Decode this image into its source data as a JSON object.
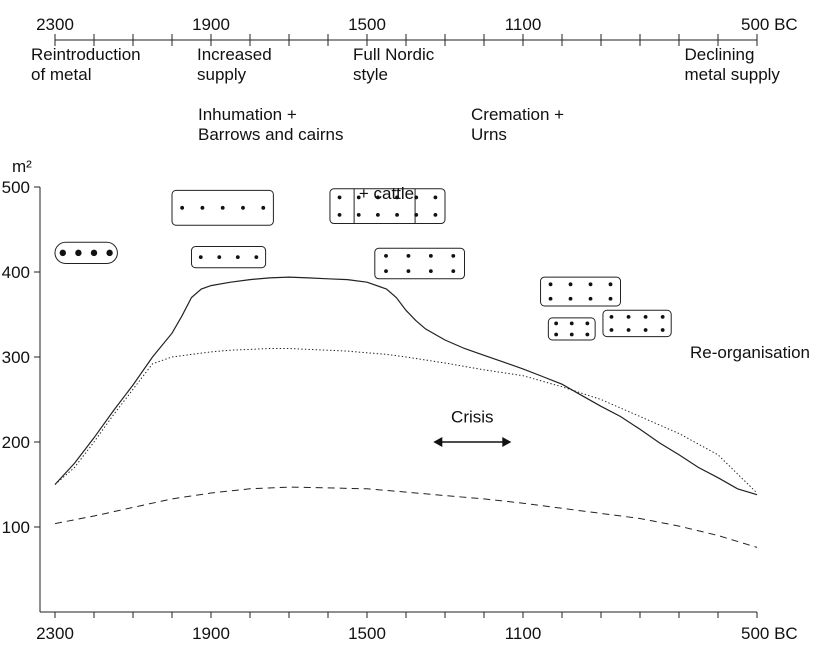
{
  "chart_data": {
    "type": "line",
    "title": "",
    "xlabel": "",
    "ylabel": "m²",
    "x_unit": "BC",
    "x_axis_labels": [
      "2300",
      "1900",
      "1500",
      "1100",
      "500 BC"
    ],
    "xlim": [
      2300,
      500
    ],
    "y_ticks": [
      100,
      200,
      300,
      400,
      500
    ],
    "ylim": [
      0,
      500
    ],
    "grid": false,
    "legend": "none",
    "top_axis": {
      "labels": [
        "2300",
        "1900",
        "1500",
        "1100",
        "500 BC"
      ],
      "minor_ticks_every": 100
    },
    "period_labels": [
      {
        "at": 2300,
        "text": [
          "Reintroduction",
          "of metal"
        ]
      },
      {
        "at": 1900,
        "text": [
          "Increased",
          "supply"
        ]
      },
      {
        "at": 1500,
        "text": [
          "Full Nordic",
          "style"
        ]
      },
      {
        "at": 650,
        "text": [
          "Declining",
          "metal supply"
        ]
      }
    ],
    "burial_labels": [
      {
        "at": 1800,
        "text": [
          "Inhumation +",
          "Barrows and cairns"
        ]
      },
      {
        "at": 1100,
        "text": [
          "Cremation +",
          "Urns"
        ]
      }
    ],
    "annotations": [
      {
        "text": "+ cattle",
        "x": 1450,
        "y": 488
      },
      {
        "text": "Crisis",
        "x": 1230,
        "y": 210,
        "kind": "double-arrow",
        "from": 1330,
        "to": 1130
      },
      {
        "text": "Re-organisation",
        "x": 650,
        "y": 300
      }
    ],
    "house_icons": [
      {
        "x": 2300,
        "x2": 2140,
        "y": 435,
        "y2": 410,
        "rows": 1,
        "cols": 4,
        "shape": "pill",
        "dot": "big"
      },
      {
        "x": 2000,
        "x2": 1740,
        "y": 496,
        "y2": 455,
        "rows": 1,
        "cols": 5,
        "shape": "rect"
      },
      {
        "x": 1950,
        "x2": 1760,
        "y": 430,
        "y2": 405,
        "rows": 1,
        "cols": 4,
        "shape": "rect"
      },
      {
        "x": 1595,
        "x2": 1300,
        "y": 498,
        "y2": 457,
        "rows": 2,
        "cols": 6,
        "shape": "rect",
        "dividers": 2
      },
      {
        "x": 1480,
        "x2": 1250,
        "y": 428,
        "y2": 392,
        "rows": 2,
        "cols": 4,
        "shape": "rect"
      },
      {
        "x": 1055,
        "x2": 850,
        "y": 394,
        "y2": 360,
        "rows": 2,
        "cols": 4,
        "shape": "rect"
      },
      {
        "x": 1035,
        "x2": 915,
        "y": 346,
        "y2": 320,
        "rows": 2,
        "cols": 3,
        "shape": "rect"
      },
      {
        "x": 895,
        "x2": 720,
        "y": 355,
        "y2": 324,
        "rows": 2,
        "cols": 4,
        "shape": "rect"
      }
    ],
    "series": [
      {
        "style": "solid",
        "x": [
          2300,
          2250,
          2200,
          2150,
          2100,
          2050,
          2000,
          1975,
          1950,
          1925,
          1900,
          1850,
          1800,
          1750,
          1700,
          1650,
          1600,
          1550,
          1500,
          1450,
          1425,
          1400,
          1375,
          1350,
          1300,
          1250,
          1200,
          1150,
          1100,
          1050,
          1000,
          950,
          900,
          850,
          800,
          750,
          700,
          650,
          600,
          550,
          500
        ],
        "y": [
          150,
          175,
          205,
          237,
          267,
          300,
          328,
          348,
          370,
          380,
          384,
          388,
          391,
          393,
          394,
          393,
          392,
          391,
          388,
          380,
          370,
          355,
          343,
          333,
          320,
          310,
          302,
          294,
          286,
          277,
          268,
          255,
          242,
          230,
          215,
          199,
          185,
          170,
          158,
          145,
          138
        ]
      },
      {
        "style": "dotted",
        "x": [
          2300,
          2250,
          2200,
          2150,
          2100,
          2050,
          2000,
          1950,
          1900,
          1850,
          1800,
          1750,
          1700,
          1650,
          1600,
          1550,
          1500,
          1450,
          1400,
          1300,
          1200,
          1100,
          1000,
          900,
          800,
          700,
          600,
          500
        ],
        "y": [
          150,
          170,
          200,
          232,
          262,
          292,
          300,
          303,
          306,
          308,
          309,
          310,
          310,
          309,
          308,
          307,
          305,
          303,
          300,
          293,
          285,
          278,
          265,
          250,
          230,
          210,
          185,
          140
        ]
      },
      {
        "style": "dashed",
        "x": [
          2300,
          2200,
          2100,
          2000,
          1900,
          1800,
          1700,
          1600,
          1500,
          1400,
          1300,
          1200,
          1100,
          1000,
          900,
          800,
          700,
          600,
          500
        ],
        "y": [
          104,
          113,
          123,
          133,
          140,
          145,
          147,
          146,
          145,
          141,
          137,
          133,
          128,
          122,
          116,
          110,
          101,
          90,
          76
        ]
      }
    ]
  }
}
